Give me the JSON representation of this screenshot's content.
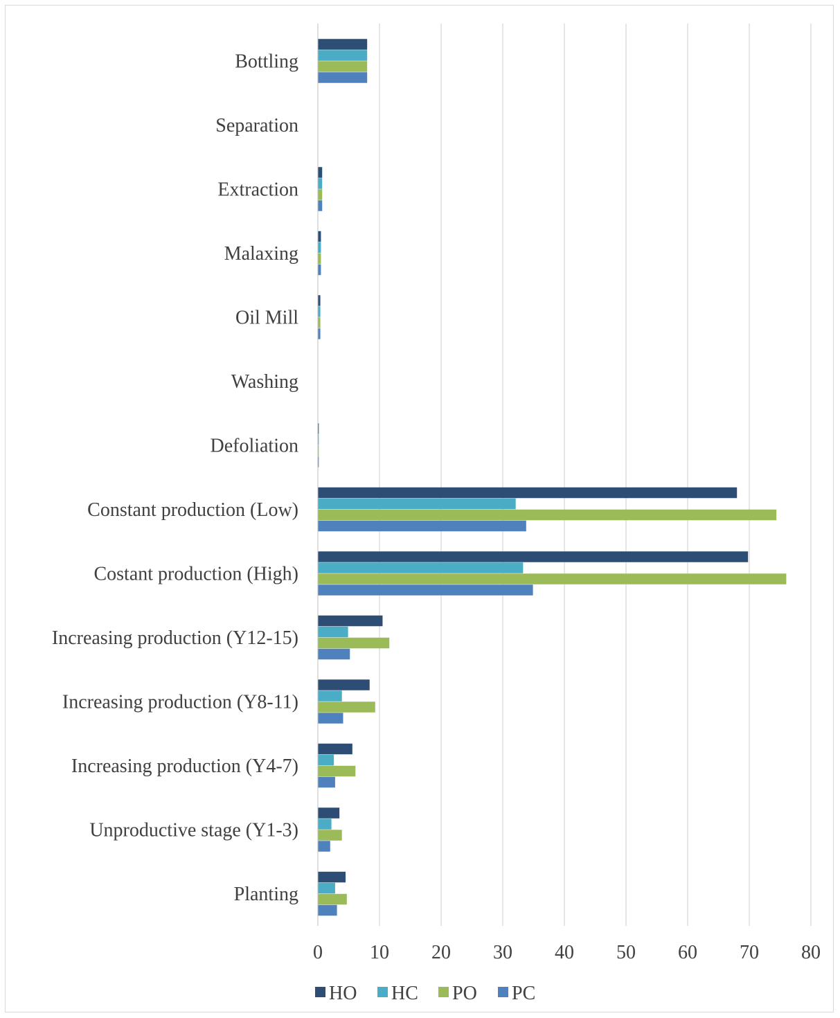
{
  "chart_data": {
    "type": "bar",
    "orientation": "horizontal",
    "categories": [
      "Bottling",
      "Separation",
      "Extraction",
      "Malaxing",
      "Oil Mill",
      "Washing",
      "Defoliation",
      "Constant production (Low)",
      "Costant production (High)",
      "Increasing production (Y12-15)",
      "Increasing production (Y8-11)",
      "Increasing  production (Y4-7)",
      "Unproductive stage (Y1-3)",
      "Planting"
    ],
    "series": [
      {
        "name": "HO",
        "color": "#2e4d74",
        "values": [
          8.0,
          0.05,
          0.7,
          0.5,
          0.4,
          0.05,
          0.15,
          68.0,
          69.8,
          10.5,
          8.4,
          5.6,
          3.5,
          4.5
        ]
      },
      {
        "name": "HC",
        "color": "#4aacc5",
        "values": [
          8.0,
          0.05,
          0.7,
          0.5,
          0.4,
          0.05,
          0.15,
          32.1,
          33.3,
          4.9,
          3.9,
          2.6,
          2.2,
          2.8
        ]
      },
      {
        "name": "PO",
        "color": "#9bbb59",
        "values": [
          8.0,
          0.05,
          0.7,
          0.5,
          0.4,
          0.05,
          0.15,
          74.4,
          76.0,
          11.6,
          9.3,
          6.1,
          3.9,
          4.7
        ]
      },
      {
        "name": "PC",
        "color": "#4f81bd",
        "values": [
          8.0,
          0.05,
          0.7,
          0.5,
          0.4,
          0.05,
          0.15,
          33.8,
          34.9,
          5.2,
          4.1,
          2.8,
          2.0,
          3.1
        ]
      }
    ],
    "xlim": [
      0,
      80
    ],
    "xticks": [
      0,
      10,
      20,
      30,
      40,
      50,
      60,
      70,
      80
    ],
    "grid": "vertical",
    "legend_position": "bottom",
    "title": "",
    "xlabel": "",
    "ylabel": ""
  }
}
